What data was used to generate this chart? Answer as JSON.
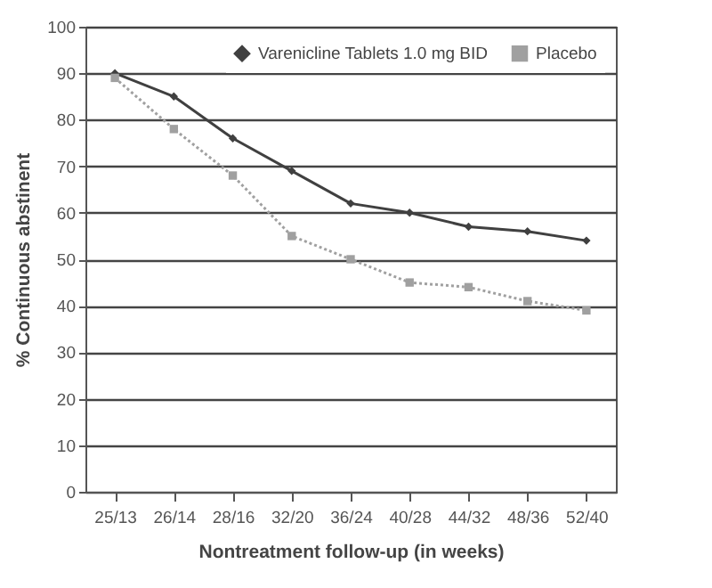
{
  "chart_data": {
    "type": "line",
    "xlabel": "Nontreatment follow-up (in weeks)",
    "ylabel": "% Continuous abstinent",
    "categories": [
      "25/13",
      "26/14",
      "28/16",
      "32/20",
      "36/24",
      "40/28",
      "44/32",
      "48/36",
      "52/40"
    ],
    "series": [
      {
        "name": "Varenicline Tablets 1.0 mg BID",
        "color": "#404040",
        "marker": "diamond",
        "line_style": "solid",
        "values": [
          90,
          85,
          76,
          69,
          62,
          60,
          57,
          56,
          54
        ]
      },
      {
        "name": "Placebo",
        "color": "#a0a0a0",
        "marker": "square",
        "line_style": "dotted",
        "values": [
          89,
          78,
          68,
          55,
          50,
          45,
          44,
          41,
          39
        ]
      }
    ],
    "ylim": [
      0,
      100
    ],
    "yticks": [
      0,
      10,
      20,
      30,
      40,
      50,
      60,
      70,
      80,
      90,
      100
    ],
    "grid": "y",
    "legend": "top right"
  }
}
